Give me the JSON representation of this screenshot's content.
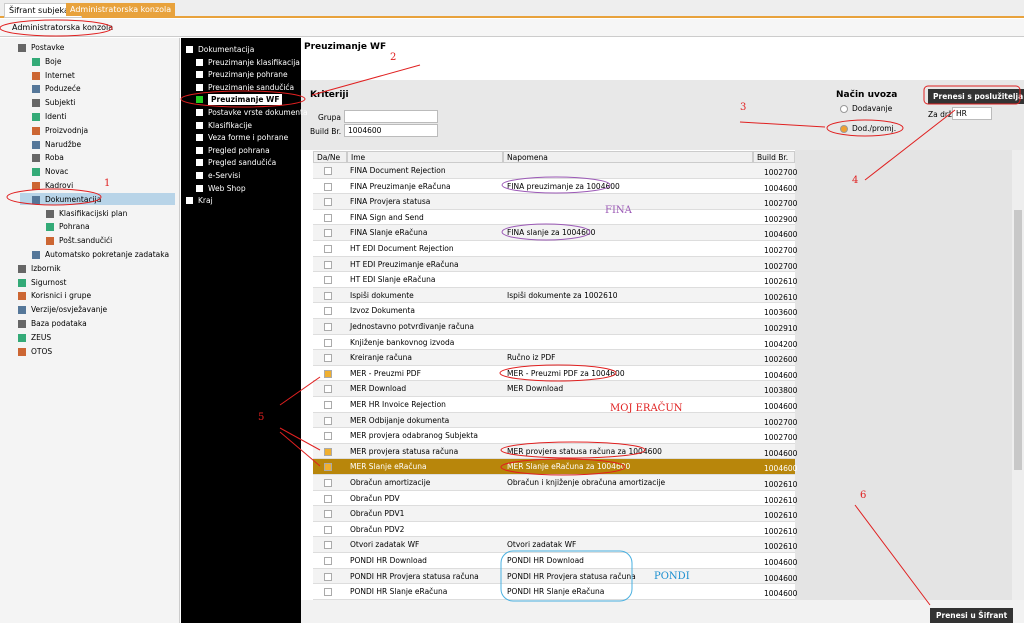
{
  "tabs": [
    "Šifrant subjekata",
    "Administratorska konzola"
  ],
  "header": {
    "title": "Administratorska konzola"
  },
  "left_tree": [
    {
      "label": "Postavke",
      "level": 0
    },
    {
      "label": "Boje",
      "level": 1
    },
    {
      "label": "Internet",
      "level": 1
    },
    {
      "label": "Poduzeće",
      "level": 1
    },
    {
      "label": "Subjekti",
      "level": 1
    },
    {
      "label": "Identi",
      "level": 1
    },
    {
      "label": "Proizvodnja",
      "level": 1
    },
    {
      "label": "Narudžbe",
      "level": 1
    },
    {
      "label": "Roba",
      "level": 1
    },
    {
      "label": "Novac",
      "level": 1
    },
    {
      "label": "Kadrovi",
      "level": 1
    },
    {
      "label": "Dokumentacija",
      "level": 1,
      "selected": true
    },
    {
      "label": "Klasifikacijski plan",
      "level": 2
    },
    {
      "label": "Pohrana",
      "level": 2
    },
    {
      "label": "Pošt.sandučići",
      "level": 2
    },
    {
      "label": "Automatsko pokretanje zadataka",
      "level": 1
    },
    {
      "label": "Izbornik",
      "level": 0
    },
    {
      "label": "Sigurnost",
      "level": 0
    },
    {
      "label": "Korisnici i grupe",
      "level": 0
    },
    {
      "label": "Verzije/osvježavanje",
      "level": 0
    },
    {
      "label": "Baza podataka",
      "level": 0
    },
    {
      "label": "ZEUS",
      "level": 0
    },
    {
      "label": "OTOS",
      "level": 0
    }
  ],
  "doc_tree": [
    {
      "label": "Dokumentacija",
      "level": 0
    },
    {
      "label": "Preuzimanje klasifikacija",
      "level": 1
    },
    {
      "label": "Preuzimanje pohrane",
      "level": 1
    },
    {
      "label": "Preuzimanje sandučića",
      "level": 1
    },
    {
      "label": "Preuzimanje WF",
      "level": 1,
      "selected": true
    },
    {
      "label": "Postavke vrste dokumenta",
      "level": 1
    },
    {
      "label": "Klasifikacije",
      "level": 1
    },
    {
      "label": "Veza forme i pohrane",
      "level": 1
    },
    {
      "label": "Pregled pohrana",
      "level": 1
    },
    {
      "label": "Pregled sandučića",
      "level": 1
    },
    {
      "label": "e-Servisi",
      "level": 1
    },
    {
      "label": "Web Shop",
      "level": 1
    },
    {
      "label": "Kraj",
      "level": 0
    }
  ],
  "panel": {
    "title": "Preuzimanje WF",
    "criteria": "Kriteriji",
    "group_label": "Grupa",
    "build_label": "Build Br.",
    "build_value": "1004600",
    "import_title": "Način uvoza",
    "import_options": [
      "Dodavanje",
      "Dod./promj."
    ],
    "country_label": "Za državu",
    "country_value": "HR",
    "download_button": "Prenesi s poslužitelja",
    "transfer_button": "Prenesi u Šifrant"
  },
  "table": {
    "columns": [
      "Da/Ne",
      "Ime",
      "Napomena",
      "Build Br."
    ],
    "rows": [
      {
        "name": "FINA Document Rejection",
        "build": "1002700"
      },
      {
        "name": "FINA Preuzimanje eRačuna",
        "note": "FINA preuzimanje za 1004600",
        "build": "1004600"
      },
      {
        "name": "FINA Provjera statusa",
        "build": "1002700"
      },
      {
        "name": "FINA Sign and Send",
        "build": "1002900"
      },
      {
        "name": "FINA Slanje eRačuna",
        "note": "FINA slanje za 1004600",
        "build": "1004600"
      },
      {
        "name": "HT EDI Document Rejection",
        "build": "1002700"
      },
      {
        "name": "HT EDI Preuzimanje eRačuna",
        "build": "1002700"
      },
      {
        "name": "HT EDI Slanje eRačuna",
        "build": "1002610"
      },
      {
        "name": "Ispiši dokumente",
        "note": "Ispiši dokumente za 1002610",
        "build": "1002610"
      },
      {
        "name": "Izvoz Dokumenta",
        "build": "1003600"
      },
      {
        "name": "Jednostavno potvrđivanje računa",
        "build": "1002910"
      },
      {
        "name": "Knjiženje bankovnog izvoda",
        "build": "1004200"
      },
      {
        "name": "Kreiranje računa",
        "note": "Ručno iz PDF",
        "build": "1002600"
      },
      {
        "name": "MER - Preuzmi PDF",
        "note": "MER - Preuzmi PDF za 1004600",
        "build": "1004600",
        "checked": true
      },
      {
        "name": "MER Download",
        "note": "MER Download",
        "build": "1003800"
      },
      {
        "name": "MER HR Invoice Rejection",
        "build": "1004600"
      },
      {
        "name": "MER Odbijanje dokumenta",
        "build": "1002700"
      },
      {
        "name": "MER provjera odabranog Subjekta",
        "build": "1002700"
      },
      {
        "name": "MER provjera statusa računa",
        "note": "MER provjera statusa računa za 1004600",
        "build": "1004600",
        "checked": true
      },
      {
        "name": "MER Slanje eRačuna",
        "note": "MER Slanje eRačuna za 1004600",
        "build": "1004600",
        "checked": true,
        "selected": true
      },
      {
        "name": "Obračun amortizacije",
        "note": "Obračun i knjiženje obračuna amortizacije",
        "build": "1002610"
      },
      {
        "name": "Obračun PDV",
        "build": "1002610"
      },
      {
        "name": "Obračun PDV1",
        "build": "1002610"
      },
      {
        "name": "Obračun PDV2",
        "build": "1002610"
      },
      {
        "name": "Otvori zadatak WF",
        "note": "Otvori zadatak WF",
        "build": "1002610"
      },
      {
        "name": "PONDI HR Download",
        "note": "PONDI HR Download",
        "build": "1004600"
      },
      {
        "name": "PONDI HR Provjera statusa računa",
        "note": "PONDI HR Provjera statusa računa",
        "build": "1004600"
      },
      {
        "name": "PONDI HR Slanje eRačuna",
        "note": "PONDI HR Slanje eRačuna",
        "build": "1004600"
      }
    ]
  },
  "annotations": [
    "1",
    "2",
    "3",
    "4",
    "5",
    "6",
    "FINA",
    "MOJ ERAČUN",
    "PONDI"
  ]
}
